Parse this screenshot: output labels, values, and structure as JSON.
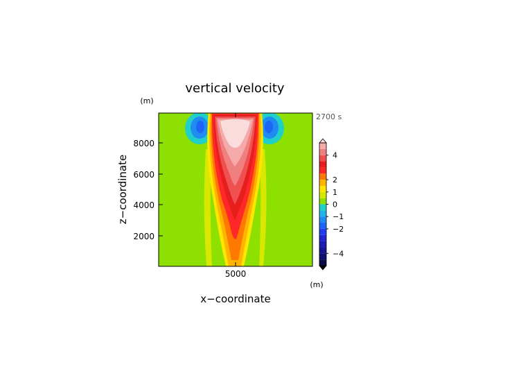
{
  "chart_data": {
    "type": "heatmap",
    "title": "vertical velocity",
    "xlabel": "x−coordinate",
    "ylabel": "z−coordinate",
    "x_unit": "(m)",
    "y_unit": "(m)",
    "time_label": "2700 s",
    "xlim": [
      0,
      10000
    ],
    "ylim": [
      0,
      9800
    ],
    "x_ticks": [
      5000
    ],
    "x_tick_labels": [
      "5000"
    ],
    "y_ticks": [
      2000,
      4000,
      6000,
      8000
    ],
    "y_tick_labels": [
      "2000",
      "4000",
      "6000",
      "8000"
    ],
    "grid": false,
    "colorbar": {
      "levels": [
        -5,
        -4.5,
        -4,
        -3.5,
        -3,
        -2.5,
        -2,
        -1.5,
        -1,
        -0.5,
        0,
        0.5,
        1,
        1.5,
        2,
        2.5,
        3,
        3.5,
        4,
        4.5,
        5
      ],
      "colors": [
        "#0b0b4a",
        "#10106e",
        "#161690",
        "#1c1cb0",
        "#2323d0",
        "#1f3cf0",
        "#1e64f5",
        "#1e8cf0",
        "#22b4e8",
        "#20d0c8",
        "#8ee000",
        "#d8e800",
        "#ffe600",
        "#ffb400",
        "#ff7800",
        "#ff2828",
        "#e61e1e",
        "#f05050",
        "#f08080",
        "#f5aaaa",
        "#fadcdc"
      ],
      "tick_values": [
        4,
        2,
        1,
        0,
        -1,
        -2,
        -4
      ],
      "tick_labels": [
        "4",
        "2",
        "1",
        "0",
        "−1",
        "−2",
        "−4"
      ],
      "extend": "both"
    },
    "field_description_values": {
      "updraft_core_max": 5,
      "side_downdraft_min": -2,
      "background": 0
    }
  }
}
